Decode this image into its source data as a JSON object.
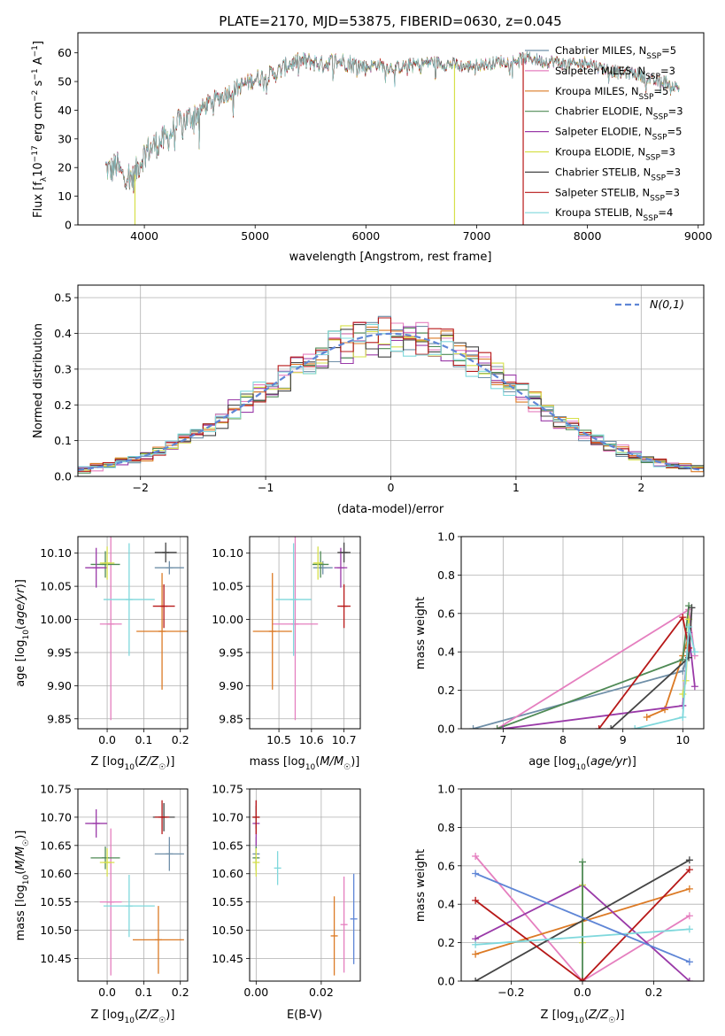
{
  "figure": {
    "title": "PLATE=2170, MJD=53875, FIBERID=0630, z=0.045"
  },
  "colors": {
    "Chabrier MILES": "#6f8fa8",
    "Salpeter MILES": "#e57fbf",
    "Kroupa MILES": "#dc7a25",
    "Chabrier ELODIE": "#4f8a55",
    "Salpeter ELODIE": "#9a3aa8",
    "Kroupa ELODIE": "#d6e04a",
    "Chabrier STELIB": "#444444",
    "Salpeter STELIB": "#b71818",
    "Kroupa STELIB": "#7fd8dc",
    "fit_blue": "#5f86d6"
  },
  "chart_data": [
    {
      "type": "line",
      "id": "spectrum",
      "title": "PLATE=2170, MJD=53875, FIBERID=0630, z=0.045",
      "xlabel": "wavelength [Angstrom, rest frame]",
      "ylabel": "Flux [f_λ 10^-17 erg cm^-2 s^-1 A^-1]",
      "xlim": [
        3400,
        9050
      ],
      "ylim": [
        0,
        67
      ],
      "xticks": [
        4000,
        5000,
        6000,
        7000,
        8000,
        9000
      ],
      "yticks": [
        0,
        10,
        20,
        30,
        40,
        50,
        60
      ],
      "legend_loc": "right",
      "series": [
        {
          "name": "Chabrier MILES, N_SSP=5"
        },
        {
          "name": "Salpeter MILES, N_SSP=3"
        },
        {
          "name": "Kroupa MILES, N_SSP=5"
        },
        {
          "name": "Chabrier ELODIE, N_SSP=3"
        },
        {
          "name": "Salpeter ELODIE, N_SSP=5"
        },
        {
          "name": "Kroupa ELODIE, N_SSP=3"
        },
        {
          "name": "Chabrier STELIB, N_SSP=3"
        },
        {
          "name": "Salpeter STELIB, N_SSP=3"
        },
        {
          "name": "Kroupa STELIB, N_SSP=4"
        }
      ],
      "envelope": {
        "x": [
          3650,
          3700,
          3750,
          3800,
          3850,
          3900,
          3950,
          4000,
          4100,
          4200,
          4300,
          4400,
          4500,
          4600,
          4700,
          4800,
          4900,
          5000,
          5100,
          5200,
          5300,
          5400,
          5500,
          5600,
          5700,
          5800,
          5900,
          6000,
          6100,
          6200,
          6300,
          6400,
          6500,
          6600,
          6700,
          6800,
          6900,
          7000,
          7100,
          7200,
          7300,
          7400,
          7500,
          7600,
          7700,
          7800,
          7900,
          8000,
          8100,
          8200,
          8300,
          8400,
          8500,
          8600,
          8700,
          8800
        ],
        "y": [
          20,
          19,
          21,
          17,
          18,
          16,
          21,
          25,
          28,
          30,
          35,
          37,
          40,
          43,
          45,
          47,
          49,
          51,
          52,
          53,
          56,
          57,
          57,
          56,
          57,
          57,
          56,
          55,
          56,
          55,
          55,
          56,
          56,
          57,
          56,
          56,
          55,
          56,
          56,
          57,
          57,
          58,
          58,
          57,
          57,
          56,
          56,
          57,
          55,
          54,
          53,
          53,
          52,
          50,
          50,
          48
        ]
      },
      "dips": [
        {
          "x": 3915,
          "y": 0
        },
        {
          "x": 6800,
          "y": 0
        },
        {
          "x": 7420,
          "y": 0
        }
      ]
    },
    {
      "type": "bar",
      "id": "residuals",
      "xlabel": "(data-model)/error",
      "ylabel": "Normed distribution",
      "xlim": [
        -2.5,
        2.5
      ],
      "ylim": [
        0,
        0.535
      ],
      "xticks": [
        -2,
        -1,
        0,
        1,
        2
      ],
      "yticks": [
        0.0,
        0.1,
        0.2,
        0.3,
        0.4,
        0.5
      ],
      "legend": "N(0,1)",
      "legend_loc": "top-right"
    },
    {
      "type": "scatter",
      "id": "age_vs_Z",
      "xlabel": "Z [log10(Z/Z☉)]",
      "ylabel": "age [log10(age/yr)]",
      "xlim": [
        -0.08,
        0.22
      ],
      "ylim": [
        9.835,
        10.125
      ],
      "xticks": [
        0.0,
        0.1,
        0.2
      ],
      "yticks": [
        9.85,
        9.9,
        9.95,
        10.0,
        10.05,
        10.1
      ],
      "points": [
        {
          "series": "Chabrier MILES",
          "x": 0.17,
          "y": 10.078,
          "xerr": 0.04,
          "yerr": 0.01
        },
        {
          "series": "Salpeter MILES",
          "x": 0.01,
          "y": 9.993,
          "xerr": 0.03,
          "yerr": 0.145
        },
        {
          "series": "Kroupa MILES",
          "x": 0.15,
          "y": 9.982,
          "xerr": 0.07,
          "yerr": 0.088
        },
        {
          "series": "Chabrier ELODIE",
          "x": -0.005,
          "y": 10.083,
          "xerr": 0.04,
          "yerr": 0.02
        },
        {
          "series": "Salpeter ELODIE",
          "x": -0.03,
          "y": 10.078,
          "xerr": 0.03,
          "yerr": 0.03
        },
        {
          "series": "Kroupa ELODIE",
          "x": 0.0,
          "y": 10.085,
          "xerr": 0.02,
          "yerr": 0.025
        },
        {
          "series": "Chabrier STELIB",
          "x": 0.16,
          "y": 10.101,
          "xerr": 0.03,
          "yerr": 0.015
        },
        {
          "series": "Salpeter STELIB",
          "x": 0.155,
          "y": 10.02,
          "xerr": 0.03,
          "yerr": 0.033
        },
        {
          "series": "Kroupa STELIB",
          "x": 0.06,
          "y": 10.03,
          "xerr": 0.07,
          "yerr": 0.085
        }
      ]
    },
    {
      "type": "scatter",
      "id": "age_vs_mass",
      "xlabel": "mass [log10(M/M☉)]",
      "yticks": [
        9.85,
        9.9,
        9.95,
        10.0,
        10.05,
        10.1
      ],
      "xlim": [
        10.41,
        10.75
      ],
      "ylim": [
        9.835,
        10.125
      ],
      "xticks": [
        10.5,
        10.6,
        10.7
      ],
      "points": [
        {
          "series": "Chabrier MILES",
          "x": 10.635,
          "y": 10.078,
          "xerr": 0.03,
          "yerr": 0.01
        },
        {
          "series": "Salpeter MILES",
          "x": 10.55,
          "y": 9.993,
          "xerr": 0.07,
          "yerr": 0.145
        },
        {
          "series": "Kroupa MILES",
          "x": 10.48,
          "y": 9.982,
          "xerr": 0.06,
          "yerr": 0.088
        },
        {
          "series": "Chabrier ELODIE",
          "x": 10.628,
          "y": 10.083,
          "xerr": 0.025,
          "yerr": 0.02
        },
        {
          "series": "Salpeter ELODIE",
          "x": 10.69,
          "y": 10.078,
          "xerr": 0.02,
          "yerr": 0.03
        },
        {
          "series": "Kroupa ELODIE",
          "x": 10.62,
          "y": 10.085,
          "xerr": 0.015,
          "yerr": 0.025
        },
        {
          "series": "Chabrier STELIB",
          "x": 10.7,
          "y": 10.101,
          "xerr": 0.02,
          "yerr": 0.015
        },
        {
          "series": "Salpeter STELIB",
          "x": 10.7,
          "y": 10.02,
          "xerr": 0.02,
          "yerr": 0.033
        },
        {
          "series": "Kroupa STELIB",
          "x": 10.545,
          "y": 10.03,
          "xerr": 0.055,
          "yerr": 0.085
        }
      ]
    },
    {
      "type": "line",
      "id": "mass_weight_vs_age",
      "xlabel": "age [log10(age/yr)]",
      "ylabel": "mass weight",
      "xlim": [
        6.3,
        10.35
      ],
      "ylim": [
        0,
        1
      ],
      "xticks": [
        7,
        8,
        9,
        10
      ],
      "yticks": [
        0.0,
        0.2,
        0.4,
        0.6,
        0.8,
        1.0
      ],
      "series": [
        {
          "series": "Chabrier MILES",
          "x": [
            6.5,
            10.0,
            10.1
          ],
          "y": [
            0.0,
            0.3,
            0.4
          ]
        },
        {
          "series": "Salpeter MILES",
          "x": [
            6.9,
            10.1,
            10.2
          ],
          "y": [
            0.0,
            0.62,
            0.38
          ]
        },
        {
          "series": "Kroupa MILES",
          "x": [
            9.4,
            9.7,
            10.0,
            10.1
          ],
          "y": [
            0.06,
            0.1,
            0.38,
            0.48
          ]
        },
        {
          "series": "Chabrier ELODIE",
          "x": [
            6.9,
            10.0,
            10.1
          ],
          "y": [
            0.0,
            0.36,
            0.64
          ]
        },
        {
          "series": "Salpeter ELODIE",
          "x": [
            7.0,
            10.0,
            10.1,
            10.2
          ],
          "y": [
            0.0,
            0.12,
            0.5,
            0.22
          ]
        },
        {
          "series": "Kroupa ELODIE",
          "x": [
            10.0,
            10.05,
            10.1
          ],
          "y": [
            0.18,
            0.25,
            0.57
          ]
        },
        {
          "series": "Chabrier STELIB",
          "x": [
            8.8,
            10.1,
            10.15
          ],
          "y": [
            0.0,
            0.37,
            0.63
          ]
        },
        {
          "series": "Salpeter STELIB",
          "x": [
            8.6,
            10.0,
            10.1
          ],
          "y": [
            0.0,
            0.58,
            0.42
          ]
        },
        {
          "series": "Kroupa STELIB",
          "x": [
            9.2,
            10.0,
            10.1,
            10.2
          ],
          "y": [
            0.0,
            0.06,
            0.53,
            0.4
          ]
        }
      ]
    },
    {
      "type": "scatter",
      "id": "mass_vs_Z",
      "xlabel": "Z [log10(Z/Z☉)]",
      "ylabel": "mass [log10(M/M☉)]",
      "xlim": [
        -0.08,
        0.22
      ],
      "ylim": [
        10.41,
        10.75
      ],
      "xticks": [
        0.0,
        0.1,
        0.2
      ],
      "yticks": [
        10.45,
        10.5,
        10.55,
        10.6,
        10.65,
        10.7,
        10.75
      ],
      "points": [
        {
          "series": "Chabrier MILES",
          "x": 0.17,
          "y": 10.635,
          "xerr": 0.04,
          "yerr": 0.03
        },
        {
          "series": "Salpeter MILES",
          "x": 0.01,
          "y": 10.55,
          "xerr": 0.03,
          "yerr": 0.13
        },
        {
          "series": "Kroupa MILES",
          "x": 0.14,
          "y": 10.483,
          "xerr": 0.07,
          "yerr": 0.06
        },
        {
          "series": "Chabrier ELODIE",
          "x": -0.005,
          "y": 10.628,
          "xerr": 0.04,
          "yerr": 0.02
        },
        {
          "series": "Salpeter ELODIE",
          "x": -0.03,
          "y": 10.689,
          "xerr": 0.03,
          "yerr": 0.025
        },
        {
          "series": "Kroupa ELODIE",
          "x": 0.0,
          "y": 10.62,
          "xerr": 0.02,
          "yerr": 0.025
        },
        {
          "series": "Chabrier STELIB",
          "x": 0.155,
          "y": 10.7,
          "xerr": 0.03,
          "yerr": 0.025
        },
        {
          "series": "Salpeter STELIB",
          "x": 0.15,
          "y": 10.7,
          "xerr": 0.02,
          "yerr": 0.03
        },
        {
          "series": "Kroupa STELIB",
          "x": 0.06,
          "y": 10.543,
          "xerr": 0.07,
          "yerr": 0.055
        }
      ]
    },
    {
      "type": "scatter",
      "id": "mass_vs_ebv",
      "xlabel": "E(B-V)",
      "xlim": [
        -0.002,
        0.032
      ],
      "ylim": [
        10.41,
        10.75
      ],
      "xticks": [
        0.0,
        0.02
      ],
      "yticks": [
        10.45,
        10.5,
        10.55,
        10.6,
        10.65,
        10.7,
        10.75
      ],
      "points": [
        {
          "series": "Chabrier MILES",
          "x": 0.0,
          "y": 10.635,
          "yerr": 0.03
        },
        {
          "series": "Salpeter MILES",
          "x": 0.027,
          "y": 10.51,
          "yerr": 0.085
        },
        {
          "series": "Kroupa MILES",
          "x": 0.024,
          "y": 10.49,
          "yerr": 0.07
        },
        {
          "series": "Chabrier ELODIE",
          "x": 0.0,
          "y": 10.628,
          "yerr": 0.02
        },
        {
          "series": "Salpeter ELODIE",
          "x": 0.0,
          "y": 10.689,
          "yerr": 0.04
        },
        {
          "series": "Kroupa ELODIE",
          "x": 0.0,
          "y": 10.62,
          "yerr": 0.025
        },
        {
          "series": "Chabrier STELIB",
          "x": 0.0,
          "y": 10.7,
          "yerr": 0.02
        },
        {
          "series": "Salpeter STELIB",
          "x": 0.0,
          "y": 10.7,
          "yerr": 0.03
        },
        {
          "series": "Kroupa STELIB",
          "x": 0.0066,
          "y": 10.61,
          "yerr": 0.03
        },
        {
          "series": "fit_blue",
          "x": 0.03,
          "y": 10.52,
          "yerr": 0.08
        }
      ]
    },
    {
      "type": "line",
      "id": "mass_weight_vs_Z",
      "xlabel": "Z [log10(Z/Z☉)]",
      "ylabel": "mass weight",
      "xlim": [
        -0.34,
        0.34
      ],
      "ylim": [
        0,
        1
      ],
      "xticks": [
        -0.2,
        0.0,
        0.2
      ],
      "yticks": [
        0.0,
        0.2,
        0.4,
        0.6,
        0.8,
        1.0
      ],
      "series": [
        {
          "series": "Salpeter MILES",
          "x": [
            -0.3,
            0.0,
            0.3
          ],
          "y": [
            0.65,
            0.0,
            0.34
          ]
        },
        {
          "series": "Kroupa MILES",
          "x": [
            -0.3,
            0.3
          ],
          "y": [
            0.14,
            0.48
          ]
        },
        {
          "series": "Salpeter ELODIE",
          "x": [
            -0.3,
            0.0,
            0.3
          ],
          "y": [
            0.22,
            0.5,
            0.0
          ]
        },
        {
          "series": "Kroupa ELODIE",
          "x": [
            0.0,
            0.0
          ],
          "y": [
            0.2,
            0.5
          ]
        },
        {
          "series": "Chabrier ELODIE",
          "x": [
            0.0,
            0.0
          ],
          "y": [
            0.0,
            0.62
          ]
        },
        {
          "series": "Chabrier STELIB",
          "x": [
            -0.3,
            0.3
          ],
          "y": [
            0.0,
            0.63
          ]
        },
        {
          "series": "Salpeter STELIB",
          "x": [
            -0.3,
            0.0,
            0.3
          ],
          "y": [
            0.42,
            0.0,
            0.58
          ]
        },
        {
          "series": "Kroupa STELIB",
          "x": [
            -0.3,
            0.3
          ],
          "y": [
            0.19,
            0.27
          ]
        },
        {
          "series": "fit_blue",
          "x": [
            -0.3,
            0.3
          ],
          "y": [
            0.56,
            0.1
          ]
        }
      ]
    }
  ]
}
